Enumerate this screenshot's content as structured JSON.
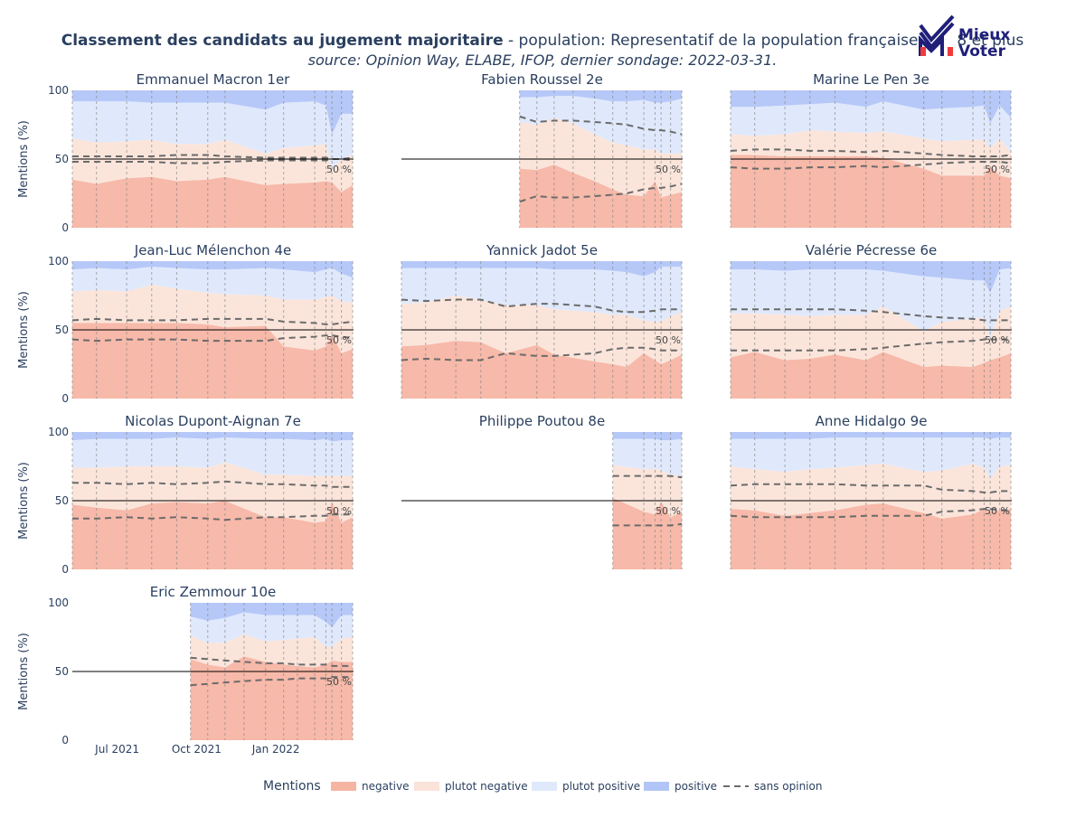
{
  "title": {
    "bold": "Classement des candidats au jugement majoritaire",
    "rest": " - population: Representatif de la population française de 18 et plus",
    "subtitle": "source: Opinion Way, ELABE, IFOP, dernier sondage: 2022-03-31."
  },
  "logo": {
    "line1": "Mieux",
    "line2": "Voter"
  },
  "colors": {
    "negative": "#f4a28c",
    "plutot_negative": "#f9dccf",
    "plutot_positive": "#d8e3fb",
    "positive": "#9db6f5",
    "sans_opinion": "#6b6b6b",
    "title": "#2a3f5f",
    "logo_dark": "#1f1f7a",
    "logo_red": "#ef3b3b"
  },
  "chart_data": {
    "type": "area",
    "stacking": "percent",
    "ylabel": "Mentions (%)",
    "ylim": [
      0,
      100
    ],
    "yticks": [
      0,
      50,
      100
    ],
    "xlim": [
      "2021-05-10",
      "2022-04-01"
    ],
    "xticks": [
      {
        "date": "2021-07-01",
        "label": "Jul 2021"
      },
      {
        "date": "2021-10-01",
        "label": "Oct 2021"
      },
      {
        "date": "2022-01-01",
        "label": "Jan 2022"
      }
    ],
    "threshold": {
      "value": 50,
      "label": "50 %"
    },
    "legend": {
      "title": "Mentions",
      "position": "bottom",
      "items": [
        {
          "key": "negative",
          "label": "negative",
          "kind": "area"
        },
        {
          "key": "plutot_negative",
          "label": "plutot negative",
          "kind": "area"
        },
        {
          "key": "plutot_positive",
          "label": "plutot positive",
          "kind": "area"
        },
        {
          "key": "positive",
          "label": "positive",
          "kind": "area"
        },
        {
          "key": "sans_opinion",
          "label": "sans opinion",
          "kind": "dash"
        }
      ]
    },
    "poll_dates": [
      "2021-05-10",
      "2021-06-07",
      "2021-07-12",
      "2021-08-10",
      "2021-09-08",
      "2021-09-24",
      "2021-10-14",
      "2021-11-03",
      "2021-11-25",
      "2021-12-20",
      "2022-01-10",
      "2022-01-26",
      "2022-02-15",
      "2022-02-28",
      "2022-03-07",
      "2022-03-18",
      "2022-03-31"
    ],
    "candidates": [
      {
        "name": "Emmanuel Macron 1er",
        "dates": [
          "2021-05-10",
          "2021-06-07",
          "2021-07-12",
          "2021-08-10",
          "2021-09-08",
          "2021-10-14",
          "2021-11-03",
          "2021-12-20",
          "2022-01-10",
          "2022-02-15",
          "2022-02-28",
          "2022-03-07",
          "2022-03-18",
          "2022-03-31"
        ],
        "negative": [
          35,
          32,
          36,
          37,
          34,
          35,
          37,
          31,
          32,
          33,
          34,
          33,
          26,
          31
        ],
        "plutot_negative": [
          30,
          30,
          27,
          27,
          27,
          26,
          27,
          23,
          26,
          27,
          27,
          10,
          24,
          22
        ],
        "plutot_positive": [
          27,
          30,
          29,
          27,
          30,
          30,
          27,
          32,
          33,
          32,
          28,
          25,
          33,
          30
        ],
        "sans_opinion": [
          48,
          48,
          48,
          48,
          47,
          47,
          48,
          49,
          49,
          49,
          49,
          50,
          50,
          49
        ]
      },
      {
        "name": "Fabien Roussel 2e",
        "dates": [
          "2021-09-24",
          "2021-10-14",
          "2021-11-03",
          "2021-11-25",
          "2021-12-20",
          "2022-01-10",
          "2022-01-26",
          "2022-02-15",
          "2022-02-28",
          "2022-03-07",
          "2022-03-18",
          "2022-03-31"
        ],
        "negative": [
          43,
          42,
          46,
          40,
          34,
          28,
          24,
          23,
          34,
          22,
          24,
          26
        ],
        "plutot_negative": [
          34,
          33,
          34,
          36,
          34,
          34,
          36,
          34,
          23,
          32,
          30,
          28
        ],
        "plutot_positive": [
          18,
          20,
          16,
          20,
          26,
          30,
          32,
          36,
          34,
          37,
          38,
          40
        ],
        "sans_opinion": [
          19,
          23,
          22,
          22,
          23,
          24,
          25,
          28,
          29,
          29,
          30,
          32
        ]
      },
      {
        "name": "Marine Le Pen 3e",
        "dates": [
          "2021-05-10",
          "2021-06-07",
          "2021-07-12",
          "2021-08-10",
          "2021-09-08",
          "2021-10-14",
          "2021-11-03",
          "2021-12-20",
          "2022-01-10",
          "2022-02-15",
          "2022-02-28",
          "2022-03-07",
          "2022-03-18",
          "2022-03-31"
        ],
        "negative": [
          53,
          53,
          52,
          52,
          52,
          52,
          51,
          43,
          38,
          38,
          38,
          45,
          38,
          36
        ],
        "plutot_negative": [
          15,
          14,
          16,
          19,
          18,
          17,
          19,
          22,
          25,
          26,
          26,
          13,
          27,
          19
        ],
        "plutot_positive": [
          20,
          21,
          21,
          19,
          21,
          19,
          22,
          21,
          24,
          24,
          25,
          18,
          24,
          25
        ],
        "sans_opinion": [
          44,
          43,
          43,
          44,
          44,
          45,
          44,
          46,
          47,
          48,
          48,
          48,
          48,
          47
        ]
      },
      {
        "name": "Jean-Luc Mélenchon 4e",
        "dates": [
          "2021-05-10",
          "2021-06-07",
          "2021-07-12",
          "2021-08-10",
          "2021-09-08",
          "2021-10-14",
          "2021-11-03",
          "2021-12-20",
          "2022-01-10",
          "2022-02-15",
          "2022-02-28",
          "2022-03-07",
          "2022-03-18",
          "2022-03-31"
        ],
        "negative": [
          55,
          55,
          55,
          55,
          55,
          54,
          52,
          53,
          38,
          35,
          38,
          47,
          33,
          36
        ],
        "plutot_negative": [
          23,
          24,
          23,
          28,
          25,
          23,
          24,
          22,
          34,
          37,
          36,
          28,
          38,
          34
        ],
        "plutot_positive": [
          16,
          16,
          16,
          13,
          15,
          17,
          18,
          20,
          22,
          20,
          20,
          20,
          20,
          18
        ],
        "sans_opinion": [
          43,
          42,
          43,
          43,
          43,
          42,
          42,
          42,
          44,
          45,
          46,
          46,
          45,
          44
        ]
      },
      {
        "name": "Yannick Jadot 5e",
        "dates": [
          "2021-05-10",
          "2021-06-07",
          "2021-07-12",
          "2021-08-10",
          "2021-09-08",
          "2021-10-14",
          "2021-11-03",
          "2021-12-20",
          "2022-01-10",
          "2022-01-26",
          "2022-02-15",
          "2022-02-28",
          "2022-03-07",
          "2022-03-18",
          "2022-03-31"
        ],
        "negative": [
          38,
          39,
          42,
          41,
          33,
          39,
          32,
          27,
          25,
          23,
          33,
          28,
          25,
          28,
          32
        ],
        "plutot_negative": [
          31,
          31,
          33,
          31,
          35,
          29,
          33,
          36,
          36,
          38,
          24,
          28,
          31,
          32,
          31
        ],
        "plutot_positive": [
          26,
          25,
          20,
          23,
          27,
          27,
          29,
          31,
          32,
          31,
          32,
          36,
          40,
          36,
          33
        ],
        "sans_opinion": [
          28,
          29,
          28,
          28,
          33,
          31,
          31,
          33,
          36,
          37,
          37,
          36,
          35,
          35,
          35
        ]
      },
      {
        "name": "Valérie Pécresse 6e",
        "dates": [
          "2021-05-10",
          "2021-06-07",
          "2021-07-12",
          "2021-08-10",
          "2021-09-08",
          "2021-10-14",
          "2021-11-03",
          "2021-12-20",
          "2022-01-10",
          "2022-02-15",
          "2022-02-28",
          "2022-03-07",
          "2022-03-18",
          "2022-03-31"
        ],
        "negative": [
          30,
          34,
          28,
          29,
          32,
          28,
          34,
          23,
          24,
          23,
          26,
          28,
          30,
          33
        ],
        "plutot_negative": [
          32,
          28,
          33,
          31,
          29,
          33,
          33,
          26,
          32,
          35,
          33,
          16,
          34,
          34
        ],
        "plutot_positive": [
          32,
          32,
          32,
          34,
          33,
          33,
          26,
          40,
          32,
          28,
          27,
          33,
          30,
          28
        ],
        "sans_opinion": [
          35,
          35,
          35,
          35,
          35,
          36,
          37,
          40,
          41,
          42,
          43,
          43,
          43,
          43
        ]
      },
      {
        "name": "Nicolas Dupont-Aignan 7e",
        "dates": [
          "2021-05-10",
          "2021-06-07",
          "2021-07-12",
          "2021-08-10",
          "2021-09-08",
          "2021-10-14",
          "2021-11-03",
          "2021-12-20",
          "2022-01-10",
          "2022-02-15",
          "2022-02-28",
          "2022-03-07",
          "2022-03-18",
          "2022-03-31"
        ],
        "negative": [
          47,
          45,
          43,
          48,
          49,
          48,
          50,
          38,
          38,
          34,
          35,
          49,
          34,
          38
        ],
        "plutot_negative": [
          27,
          29,
          32,
          27,
          26,
          26,
          28,
          31,
          31,
          34,
          33,
          19,
          34,
          30
        ],
        "plutot_positive": [
          20,
          21,
          20,
          20,
          21,
          21,
          18,
          26,
          26,
          26,
          27,
          25,
          26,
          26
        ],
        "sans_opinion": [
          37,
          37,
          38,
          37,
          38,
          37,
          36,
          38,
          38,
          39,
          39,
          40,
          40,
          40
        ]
      },
      {
        "name": "Philippe Poutou 8e",
        "dates": [
          "2022-01-10",
          "2022-02-15",
          "2022-02-28",
          "2022-03-07",
          "2022-03-18",
          "2022-03-31"
        ],
        "negative": [
          52,
          42,
          40,
          49,
          38,
          42
        ],
        "plutot_negative": [
          24,
          31,
          33,
          23,
          31,
          26
        ],
        "plutot_positive": [
          19,
          22,
          22,
          22,
          25,
          27
        ],
        "sans_opinion": [
          32,
          32,
          32,
          32,
          32,
          33
        ]
      },
      {
        "name": "Anne Hidalgo 9e",
        "dates": [
          "2021-05-10",
          "2021-06-07",
          "2021-07-12",
          "2021-08-10",
          "2021-09-08",
          "2021-10-14",
          "2021-11-03",
          "2021-12-20",
          "2022-01-10",
          "2022-02-15",
          "2022-02-28",
          "2022-03-07",
          "2022-03-18",
          "2022-03-31"
        ],
        "negative": [
          44,
          43,
          39,
          41,
          43,
          47,
          48,
          41,
          37,
          40,
          44,
          42,
          43,
          44
        ],
        "plutot_negative": [
          31,
          30,
          32,
          32,
          31,
          29,
          29,
          30,
          35,
          37,
          30,
          24,
          32,
          32
        ],
        "plutot_positive": [
          20,
          22,
          24,
          22,
          22,
          20,
          19,
          25,
          24,
          19,
          22,
          29,
          21,
          20
        ],
        "sans_opinion": [
          39,
          38,
          38,
          38,
          38,
          39,
          39,
          39,
          42,
          43,
          44,
          44,
          43,
          43
        ]
      },
      {
        "name": "Eric Zemmour 10e",
        "dates": [
          "2021-09-24",
          "2021-10-14",
          "2021-11-03",
          "2021-11-25",
          "2021-12-20",
          "2022-01-10",
          "2022-01-26",
          "2022-02-15",
          "2022-02-28",
          "2022-03-07",
          "2022-03-18",
          "2022-03-31"
        ],
        "negative": [
          59,
          55,
          53,
          61,
          57,
          55,
          54,
          53,
          55,
          58,
          57,
          57
        ],
        "plutot_negative": [
          17,
          16,
          18,
          16,
          15,
          18,
          20,
          22,
          13,
          10,
          17,
          18
        ],
        "plutot_positive": [
          14,
          16,
          18,
          16,
          19,
          18,
          17,
          16,
          18,
          14,
          17,
          16
        ],
        "sans_opinion": [
          40,
          41,
          42,
          43,
          44,
          44,
          45,
          45,
          45,
          46,
          46,
          46
        ]
      }
    ]
  }
}
